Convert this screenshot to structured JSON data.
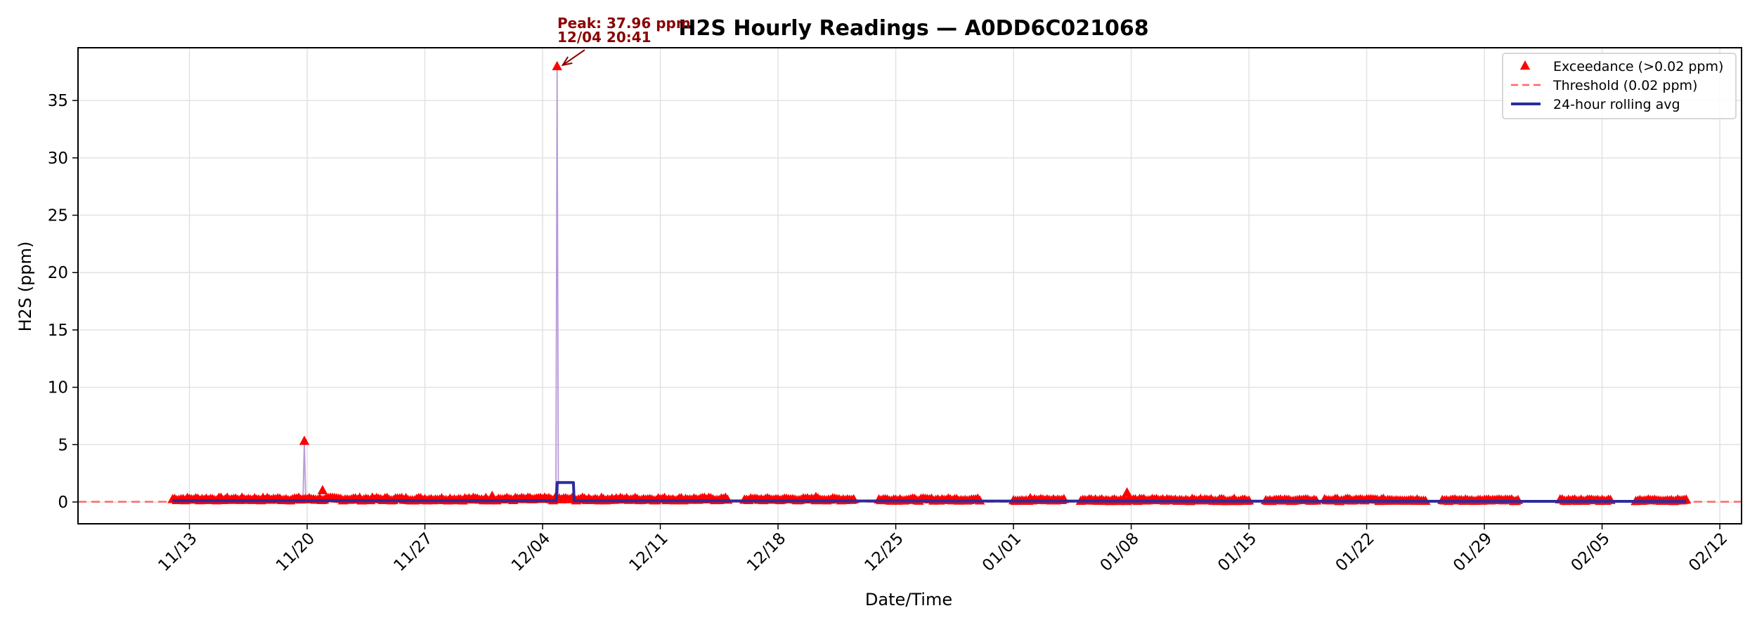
{
  "chart_data": {
    "type": "line",
    "title": "H2S Hourly Readings — A0DD6C021068",
    "xlabel": "Date/Time",
    "ylabel": "H2S (ppm)",
    "x_range": [
      "2023-11-06T09:00",
      "2024-02-13T07:00"
    ],
    "y_range": [
      -1.9,
      39.6
    ],
    "x_ticks": [
      {
        "date": "2023-11-13",
        "label": "11/13"
      },
      {
        "date": "2023-11-20",
        "label": "11/20"
      },
      {
        "date": "2023-11-27",
        "label": "11/27"
      },
      {
        "date": "2023-12-04",
        "label": "12/04"
      },
      {
        "date": "2023-12-11",
        "label": "12/11"
      },
      {
        "date": "2023-12-18",
        "label": "12/18"
      },
      {
        "date": "2023-12-25",
        "label": "12/25"
      },
      {
        "date": "2024-01-01",
        "label": "01/01"
      },
      {
        "date": "2024-01-08",
        "label": "01/08"
      },
      {
        "date": "2024-01-15",
        "label": "01/15"
      },
      {
        "date": "2024-01-22",
        "label": "01/22"
      },
      {
        "date": "2024-01-29",
        "label": "01/29"
      },
      {
        "date": "2024-02-05",
        "label": "02/05"
      },
      {
        "date": "2024-02-12",
        "label": "02/12"
      }
    ],
    "y_ticks": [
      0,
      5,
      10,
      15,
      20,
      25,
      30,
      35
    ],
    "grid": true,
    "legend_position": "top-right",
    "threshold": {
      "value": 0.02,
      "label": "Threshold (0.02 ppm)",
      "color": "#ff6666"
    },
    "series": [
      {
        "name": "Exceedance (>0.02 ppm)",
        "kind": "markers",
        "marker": "triangle",
        "color": "#ff0000",
        "bands": [
          {
            "start": "2023-11-12T00:00",
            "end": "2023-12-15T00:00",
            "base": 0.1,
            "amp": 0.25
          },
          {
            "start": "2023-12-16T00:00",
            "end": "2023-12-22T12:00",
            "base": 0.1,
            "amp": 0.2
          },
          {
            "start": "2023-12-24T00:00",
            "end": "2023-12-30T00:00",
            "base": 0.08,
            "amp": 0.2
          },
          {
            "start": "2024-01-01T00:00",
            "end": "2024-01-04T00:00",
            "base": 0.05,
            "amp": 0.2
          },
          {
            "start": "2024-01-05T00:00",
            "end": "2024-01-15T00:00",
            "base": 0.05,
            "amp": 0.2
          },
          {
            "start": "2024-01-16T00:00",
            "end": "2024-01-19T00:00",
            "base": 0.05,
            "amp": 0.15
          },
          {
            "start": "2024-01-19T12:00",
            "end": "2024-01-25T12:00",
            "base": 0.05,
            "amp": 0.2
          },
          {
            "start": "2024-01-26T12:00",
            "end": "2024-01-31T00:00",
            "base": 0.05,
            "amp": 0.15
          },
          {
            "start": "2024-02-02T12:00",
            "end": "2024-02-05T12:00",
            "base": 0.05,
            "amp": 0.15
          },
          {
            "start": "2024-02-07T00:00",
            "end": "2024-02-10T00:00",
            "base": 0.05,
            "amp": 0.15
          }
        ],
        "spikes": [
          {
            "t": "2023-11-19T20:00",
            "v": 5.3
          },
          {
            "t": "2023-11-20T22:00",
            "v": 1.0
          },
          {
            "t": "2023-12-01T00:00",
            "v": 0.5
          },
          {
            "t": "2023-12-04T20:41",
            "v": 37.96
          },
          {
            "t": "2024-01-07T18:00",
            "v": 0.8
          },
          {
            "t": "2024-01-02T00:00",
            "v": 0.3
          },
          {
            "t": "2023-12-20T06:00",
            "v": 0.4
          }
        ]
      },
      {
        "name": "Hourly readings",
        "kind": "line",
        "color": "#b89ad8",
        "points": [
          {
            "t": "2023-11-19T18:00",
            "v": 0.1
          },
          {
            "t": "2023-11-19T20:00",
            "v": 5.3
          },
          {
            "t": "2023-11-19T22:00",
            "v": 0.1
          },
          {
            "t": "2023-12-04T19:00",
            "v": 0.1
          },
          {
            "t": "2023-12-04T20:41",
            "v": 37.96
          },
          {
            "t": "2023-12-04T22:30",
            "v": 0.1
          }
        ]
      },
      {
        "name": "24-hour rolling avg",
        "kind": "line",
        "color": "#2b2b9e",
        "points": [
          {
            "t": "2023-11-12T00:00",
            "v": 0.1
          },
          {
            "t": "2023-12-04T19:30",
            "v": 0.1
          },
          {
            "t": "2023-12-04T20:41",
            "v": 1.7
          },
          {
            "t": "2023-12-05T20:00",
            "v": 1.7
          },
          {
            "t": "2023-12-05T21:00",
            "v": 0.1
          },
          {
            "t": "2024-02-10T00:00",
            "v": 0.05
          }
        ]
      }
    ],
    "annotation": {
      "line1": "Peak: 37.96 ppm",
      "line2": "12/04 20:41",
      "target": {
        "t": "2023-12-04T20:41",
        "v": 37.96
      },
      "color": "#8b0000"
    },
    "legend": [
      {
        "label": "Exceedance (>0.02 ppm)",
        "symbol": "triangle",
        "color": "#ff0000"
      },
      {
        "label": "Threshold (0.02 ppm)",
        "symbol": "dashed",
        "color": "#ff6666"
      },
      {
        "label": "24-hour rolling avg",
        "symbol": "line",
        "color": "#2b2b9e"
      }
    ]
  }
}
